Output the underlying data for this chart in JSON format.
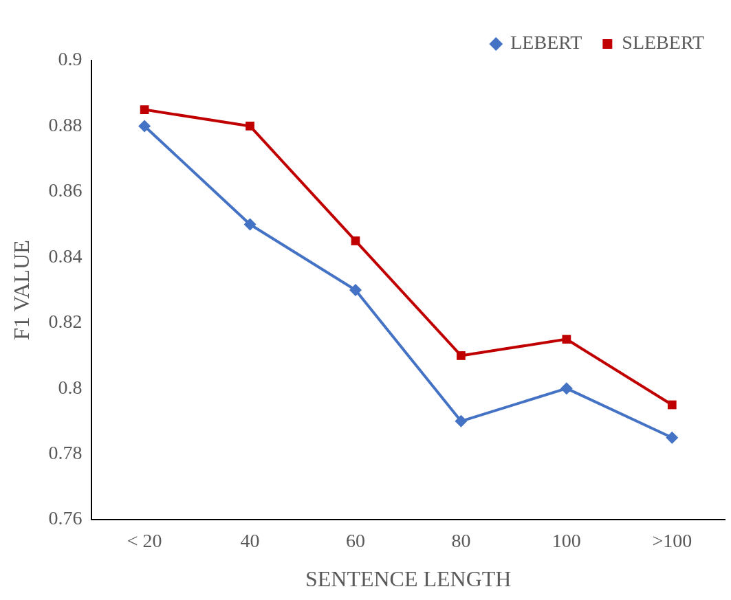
{
  "chart_data": {
    "type": "line",
    "xlabel": "SENTENCE LENGTH",
    "ylabel": "F1 VALUE",
    "categories": [
      "< 20",
      "40",
      "60",
      "80",
      "100",
      ">100"
    ],
    "series": [
      {
        "name": "LEBERT",
        "color": "#4472c4",
        "marker": "diamond",
        "values": [
          0.88,
          0.85,
          0.83,
          0.79,
          0.8,
          0.785
        ]
      },
      {
        "name": "SLEBERT",
        "color": "#c00000",
        "marker": "square",
        "values": [
          0.885,
          0.88,
          0.845,
          0.81,
          0.815,
          0.795
        ]
      }
    ],
    "ylim": [
      0.76,
      0.9
    ],
    "yticks": [
      0.76,
      0.78,
      0.8,
      0.82,
      0.84,
      0.86,
      0.88,
      0.9
    ],
    "grid": false,
    "legend": "top right",
    "line_style": "solid"
  }
}
